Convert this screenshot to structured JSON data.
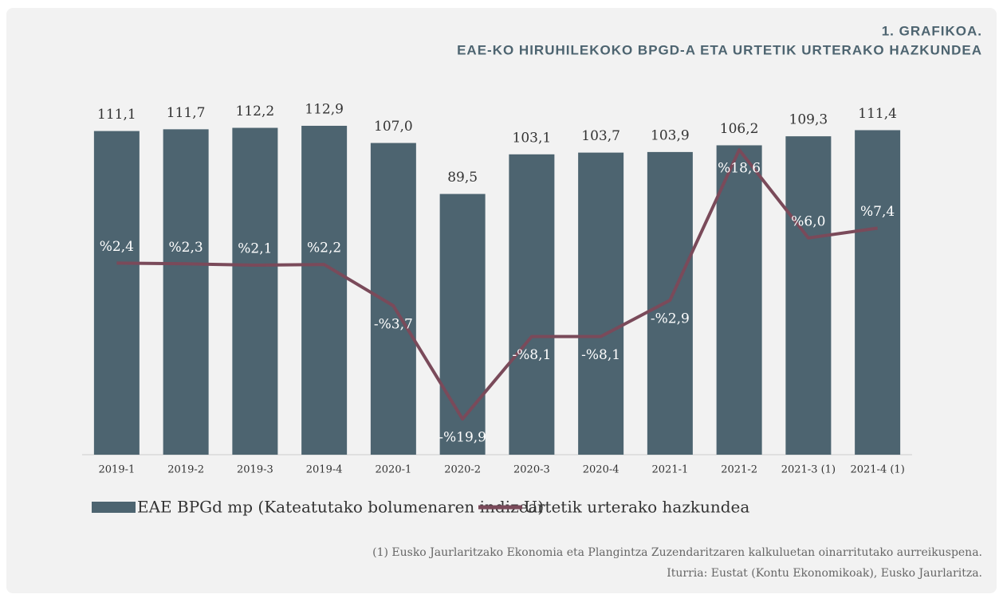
{
  "chart_data": {
    "type": "bar",
    "title": "1. GRAFIKOA.",
    "subtitle": "EAE-KO HIRUHILEKOKO BPGD-A ETA URTETIK URTERAKO HAZKUNDEA",
    "categories": [
      "2019-1",
      "2019-2",
      "2019-3",
      "2019-4",
      "2020-1",
      "2020-2",
      "2020-3",
      "2020-4",
      "2021-1",
      "2021-2",
      "2021-3 (1)",
      "2021-4 (1)"
    ],
    "ylim": [
      0,
      120
    ],
    "y2lim": [
      -25,
      25
    ],
    "series": [
      {
        "name": "EAE BPGd mp (Kateatutako bolumenaren indizea)",
        "type": "bar",
        "color": "#4d6470",
        "values": [
          111.1,
          111.7,
          112.2,
          112.9,
          107.0,
          89.5,
          103.1,
          103.7,
          103.9,
          106.2,
          109.3,
          111.4
        ],
        "value_labels": [
          "111,1",
          "111,7",
          "112,2",
          "112,9",
          "107,0",
          "89,5",
          "103,1",
          "103,7",
          "103,9",
          "106,2",
          "109,3",
          "111,4"
        ]
      },
      {
        "name": "Urtetik urterako hazkundea",
        "type": "line",
        "axis": "y2",
        "color": "#7a4a5a",
        "values": [
          2.4,
          2.3,
          2.1,
          2.2,
          -3.7,
          -19.9,
          -8.1,
          -8.1,
          -2.9,
          18.6,
          6.0,
          7.4
        ],
        "value_labels": [
          "%2,4",
          "%2,3",
          "%2,1",
          "%2,2",
          "-%3,7",
          "-%19,9",
          "-%8,1",
          "-%8,1",
          "-%2,9",
          "%18,6",
          "%6,0",
          "%7,4"
        ]
      }
    ],
    "notes": [
      "(1) Eusko Jaurlaritzako Ekonomia eta Plangintza Zuzendaritzaren kalkuluetan oinarritutako aurreikuspena.",
      "Iturria: Eustat (Kontu Ekonomikoak), Eusko Jaurlaritza."
    ]
  }
}
